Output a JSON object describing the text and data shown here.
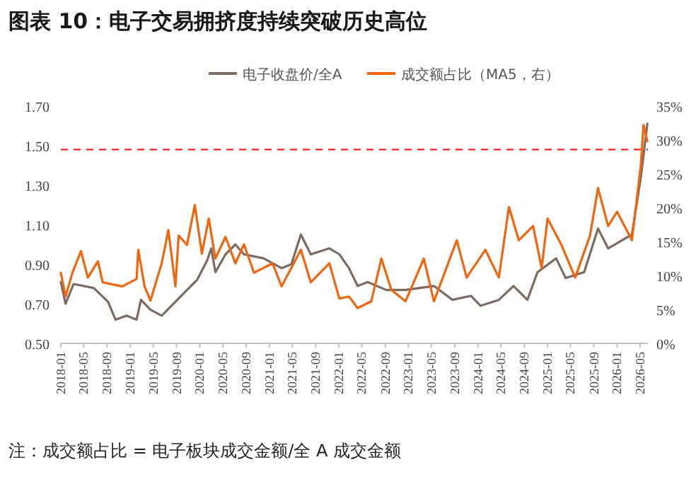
{
  "chart_data": {
    "type": "line",
    "title": "图表 10：电子交易拥挤度持续突破历史高位",
    "series": [
      {
        "name": "电子收盘价/全A",
        "color": "#7b6b61",
        "x": [
          "2018-01-01",
          "2018-01-26",
          "2018-03-09",
          "2018-06-23",
          "2018-09-06",
          "2018-10-15",
          "2018-12-12",
          "2019-02-03",
          "2019-02-26",
          "2019-04-17",
          "2019-06-15",
          "2019-08-26",
          "2019-10-26",
          "2019-12-17",
          "2020-02-09",
          "2020-03-01",
          "2020-03-23",
          "2020-05-15",
          "2020-07-06",
          "2020-08-20",
          "2020-12-01",
          "2021-03-06",
          "2021-04-26",
          "2021-06-15",
          "2021-08-06",
          "2021-11-12",
          "2022-01-03",
          "2022-02-23",
          "2022-04-09",
          "2022-06-01",
          "2022-09-06",
          "2022-12-17",
          "2023-05-15",
          "2023-08-20",
          "2023-11-26",
          "2024-01-15",
          "2024-04-20",
          "2024-07-06",
          "2024-09-17",
          "2024-11-09",
          "2025-02-15",
          "2025-04-06",
          "2025-07-12",
          "2025-09-23",
          "2025-11-15",
          "2026-03-20",
          "2026-05-06",
          "2026-06-09"
        ],
        "values": [
          0.81,
          0.7,
          0.8,
          0.78,
          0.71,
          0.62,
          0.64,
          0.62,
          0.72,
          0.67,
          0.64,
          0.71,
          0.77,
          0.82,
          0.92,
          0.98,
          0.86,
          0.95,
          1.0,
          0.95,
          0.93,
          0.88,
          0.9,
          1.05,
          0.95,
          0.98,
          0.95,
          0.88,
          0.79,
          0.81,
          0.77,
          0.77,
          0.79,
          0.72,
          0.74,
          0.69,
          0.72,
          0.79,
          0.72,
          0.86,
          0.93,
          0.83,
          0.86,
          1.08,
          0.98,
          1.05,
          1.34,
          1.61
        ]
      },
      {
        "name": "成交额占比（MA5，右）",
        "color": "#f0650f",
        "axis": "y2",
        "x": [
          "2018-01-01",
          "2018-01-26",
          "2018-03-03",
          "2018-04-17",
          "2018-05-23",
          "2018-07-15",
          "2018-08-09",
          "2018-11-20",
          "2019-02-03",
          "2019-02-12",
          "2019-03-17",
          "2019-04-17",
          "2019-06-15",
          "2019-07-20",
          "2019-08-26",
          "2019-09-12",
          "2019-10-26",
          "2019-12-06",
          "2020-01-12",
          "2020-02-17",
          "2020-03-23",
          "2020-05-15",
          "2020-07-06",
          "2020-08-20",
          "2020-10-12",
          "2021-01-17",
          "2021-03-06",
          "2021-06-15",
          "2021-08-06",
          "2021-11-12",
          "2022-01-03",
          "2022-02-23",
          "2022-04-09",
          "2022-06-20",
          "2022-08-12",
          "2022-10-03",
          "2022-12-17",
          "2023-03-23",
          "2023-05-15",
          "2023-09-12",
          "2023-11-03",
          "2024-02-09",
          "2024-04-20",
          "2024-06-12",
          "2024-08-03",
          "2024-10-17",
          "2024-12-01",
          "2025-01-01",
          "2025-03-15",
          "2025-05-26",
          "2025-08-12",
          "2025-09-23",
          "2025-11-15",
          "2026-01-01",
          "2026-03-20",
          "2026-05-06",
          "2026-05-20",
          "2026-06-09"
        ],
        "values": [
          10.4,
          6.9,
          10.4,
          13.6,
          9.7,
          12.1,
          9.0,
          8.4,
          9.5,
          13.8,
          8.4,
          6.3,
          11.8,
          16.7,
          8.4,
          15.9,
          14.5,
          20.4,
          13.2,
          18.4,
          12.5,
          15.7,
          11.8,
          14.6,
          10.4,
          11.8,
          8.4,
          13.8,
          9.0,
          11.8,
          6.6,
          6.9,
          5.2,
          6.2,
          12.5,
          7.9,
          6.2,
          12.5,
          6.2,
          15.2,
          9.7,
          13.8,
          9.7,
          20.1,
          15.2,
          17.3,
          11.1,
          18.4,
          14.5,
          9.7,
          15.9,
          22.9,
          17.3,
          19.4,
          15.2,
          26.3,
          32.2,
          29.8
        ]
      }
    ],
    "xlim": [
      "2018-01-01",
      "2026-06-12"
    ],
    "xticks": [
      {
        "value": "2018-01",
        "label": "2018-01"
      },
      {
        "value": "2018-05",
        "label": "2018-05"
      },
      {
        "value": "2018-09",
        "label": "2018-09"
      },
      {
        "value": "2019-01",
        "label": "2019-01"
      },
      {
        "value": "2019-05",
        "label": "2019-05"
      },
      {
        "value": "2019-09",
        "label": "2019-09"
      },
      {
        "value": "2020-01",
        "label": "2020-01"
      },
      {
        "value": "2020-05",
        "label": "2020-05"
      },
      {
        "value": "2020-09",
        "label": "2020-09"
      },
      {
        "value": "2021-01",
        "label": "2021-01"
      },
      {
        "value": "2021-05",
        "label": "2021-05"
      },
      {
        "value": "2021-09",
        "label": "2021-09"
      },
      {
        "value": "2022-01",
        "label": "2022-01"
      },
      {
        "value": "2022-05",
        "label": "2022-05"
      },
      {
        "value": "2022-09",
        "label": "2022-09"
      },
      {
        "value": "2023-01",
        "label": "2023-01"
      },
      {
        "value": "2023-05",
        "label": "2023-05"
      },
      {
        "value": "2023-09",
        "label": "2023-09"
      },
      {
        "value": "2024-01",
        "label": "2024-01"
      },
      {
        "value": "2024-05",
        "label": "2024-05"
      },
      {
        "value": "2024-09",
        "label": "2024-09"
      },
      {
        "value": "2025-01",
        "label": "2025-01"
      },
      {
        "value": "2025-05",
        "label": "2025-05"
      },
      {
        "value": "2025-09",
        "label": "2025-09"
      },
      {
        "value": "2026-01",
        "label": "2026-01"
      },
      {
        "value": "2026-05",
        "label": "2026-05"
      }
    ],
    "ylim": [
      0.5,
      1.7
    ],
    "yticks": [
      {
        "value": 0.5,
        "label": "0.50"
      },
      {
        "value": 0.7,
        "label": "0.70"
      },
      {
        "value": 0.9,
        "label": "0.90"
      },
      {
        "value": 1.1,
        "label": "1.10"
      },
      {
        "value": 1.3,
        "label": "1.30"
      },
      {
        "value": 1.5,
        "label": "1.50"
      },
      {
        "value": 1.7,
        "label": "1.70"
      }
    ],
    "y2lim": [
      0,
      35
    ],
    "y2ticks": [
      {
        "value": 0,
        "label": "0%"
      },
      {
        "value": 5,
        "label": "5%"
      },
      {
        "value": 10,
        "label": "10%"
      },
      {
        "value": 15,
        "label": "15%"
      },
      {
        "value": 20,
        "label": "20%"
      },
      {
        "value": 25,
        "label": "25%"
      },
      {
        "value": 30,
        "label": "30%"
      },
      {
        "value": 35,
        "label": "35%"
      }
    ],
    "ref_lines": [
      {
        "axis": "y",
        "value": 1.48,
        "color": "#ff2020",
        "line_style": "dashed"
      }
    ],
    "legend": "top",
    "grid": false,
    "annotations": [
      "注：成交额占比 = 电子板块成交金额/全 A 成交金额"
    ]
  }
}
